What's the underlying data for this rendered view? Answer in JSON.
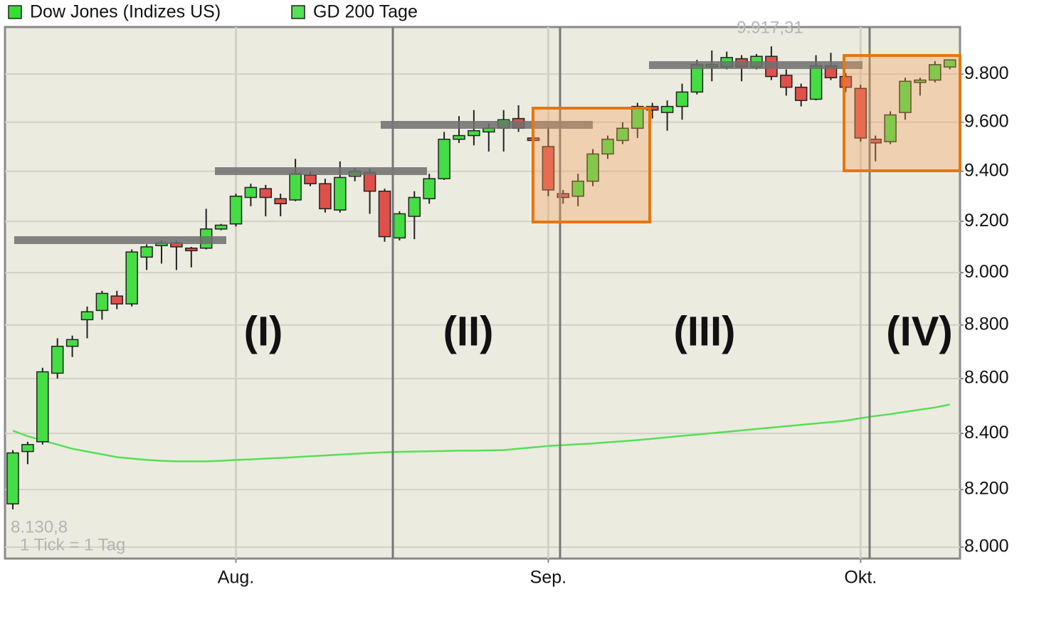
{
  "chart_data": {
    "type": "candlestick",
    "log_scale": true,
    "grid": true,
    "ylim": [
      7961,
      10000
    ],
    "yticks": [
      {
        "value": 8000,
        "label": "8.000"
      },
      {
        "value": 8200,
        "label": "8.200"
      },
      {
        "value": 8400,
        "label": "8.400"
      },
      {
        "value": 8600,
        "label": "8.600"
      },
      {
        "value": 8800,
        "label": "8.800"
      },
      {
        "value": 9000,
        "label": "9.000"
      },
      {
        "value": 9200,
        "label": "9.200"
      },
      {
        "value": 9400,
        "label": "9.400"
      },
      {
        "value": 9600,
        "label": "9.600"
      },
      {
        "value": 9800,
        "label": "9.800"
      }
    ],
    "categories": [
      null,
      null,
      null,
      null,
      null,
      null,
      null,
      null,
      null,
      null,
      null,
      null,
      null,
      null,
      null,
      "Aug.",
      null,
      null,
      null,
      null,
      null,
      null,
      null,
      null,
      null,
      null,
      null,
      null,
      null,
      null,
      null,
      null,
      null,
      null,
      null,
      null,
      "Sep.",
      null,
      null,
      null,
      null,
      null,
      null,
      null,
      null,
      null,
      null,
      null,
      null,
      null,
      null,
      null,
      null,
      null,
      null,
      null,
      null,
      "Okt.",
      null,
      null,
      null,
      null,
      null,
      null
    ],
    "series": [
      {
        "name": "Dow Jones (Indizes US)",
        "type": "candlestick",
        "color": "#33dd33",
        "up_color": "#44dd44",
        "down_color": "#e0504a",
        "open": [
          8150,
          8335,
          8370,
          8620,
          8720,
          8820,
          8855,
          8910,
          8880,
          9060,
          9105,
          9115,
          9095,
          9095,
          9170,
          9190,
          9295,
          9330,
          9290,
          9285,
          9385,
          9350,
          9245,
          9380,
          9395,
          9320,
          9135,
          9220,
          9290,
          9370,
          9530,
          9545,
          9560,
          9575,
          9615,
          9535,
          9500,
          9310,
          9300,
          9360,
          9470,
          9525,
          9575,
          9665,
          9640,
          9665,
          9725,
          9830,
          9830,
          9865,
          9830,
          9875,
          9795,
          9745,
          9695,
          9835,
          9790,
          9740,
          9530,
          9520,
          9640,
          9765,
          9775,
          9830
        ],
        "high": [
          8340,
          8370,
          8640,
          8750,
          8760,
          8870,
          8930,
          8930,
          9090,
          9110,
          9125,
          9125,
          9100,
          9250,
          9190,
          9310,
          9350,
          9345,
          9310,
          9450,
          9400,
          9370,
          9440,
          9415,
          9410,
          9330,
          9240,
          9320,
          9390,
          9560,
          9625,
          9650,
          9595,
          9650,
          9670,
          9545,
          9580,
          9325,
          9390,
          9490,
          9545,
          9600,
          9680,
          9680,
          9690,
          9760,
          9860,
          9900,
          9895,
          9880,
          9885,
          9917.31,
          9820,
          9760,
          9880,
          9890,
          9805,
          9755,
          9545,
          9645,
          9785,
          9785,
          9855,
          9860
        ],
        "low": [
          8130.8,
          8290,
          8360,
          8600,
          8680,
          8750,
          8820,
          8860,
          8870,
          9010,
          9035,
          9010,
          9020,
          9090,
          9165,
          9180,
          9260,
          9220,
          9220,
          9280,
          9340,
          9235,
          9235,
          9360,
          9230,
          9120,
          9125,
          9130,
          9270,
          9365,
          9515,
          9505,
          9480,
          9480,
          9560,
          9515,
          9300,
          9270,
          9260,
          9340,
          9450,
          9510,
          9535,
          9615,
          9565,
          9610,
          9715,
          9770,
          9820,
          9770,
          9820,
          9775,
          9710,
          9665,
          9690,
          9775,
          9725,
          9520,
          9440,
          9510,
          9610,
          9710,
          9765,
          9820
        ],
        "close": [
          8330,
          8360,
          8625,
          8720,
          8745,
          8850,
          8920,
          8880,
          9080,
          9100,
          9115,
          9100,
          9085,
          9170,
          9185,
          9300,
          9335,
          9295,
          9270,
          9390,
          9350,
          9250,
          9375,
          9400,
          9320,
          9140,
          9230,
          9295,
          9370,
          9530,
          9545,
          9565,
          9575,
          9610,
          9575,
          9525,
          9325,
          9295,
          9360,
          9470,
          9530,
          9575,
          9665,
          9650,
          9665,
          9725,
          9840,
          9840,
          9870,
          9830,
          9875,
          9790,
          9745,
          9690,
          9835,
          9785,
          9745,
          9535,
          9515,
          9630,
          9770,
          9775,
          9840,
          9860
        ]
      },
      {
        "name": "GD 200 Tage",
        "type": "line",
        "color": "#55e055",
        "values": [
          8410,
          8390,
          8375,
          8360,
          8345,
          8335,
          8325,
          8315,
          8310,
          8305,
          8302,
          8300,
          8300,
          8300,
          8302,
          8305,
          8307,
          8310,
          8312,
          8315,
          8318,
          8321,
          8324,
          8327,
          8330,
          8332,
          8334,
          8335,
          8336,
          8337,
          8338,
          8338,
          8339,
          8340,
          8345,
          8350,
          8355,
          8358,
          8361,
          8364,
          8368,
          8372,
          8376,
          8381,
          8386,
          8391,
          8396,
          8401,
          8406,
          8411,
          8416,
          8421,
          8426,
          8431,
          8436,
          8441,
          8446,
          8455,
          8463,
          8470,
          8478,
          8486,
          8494,
          8505
        ]
      }
    ],
    "high_label": "9.917,31",
    "low_label": "8.130,8",
    "tick_note": "1 Tick = 1 Tag",
    "annotations": [
      "(I)",
      "(II)",
      "(III)",
      "(IV)"
    ]
  }
}
